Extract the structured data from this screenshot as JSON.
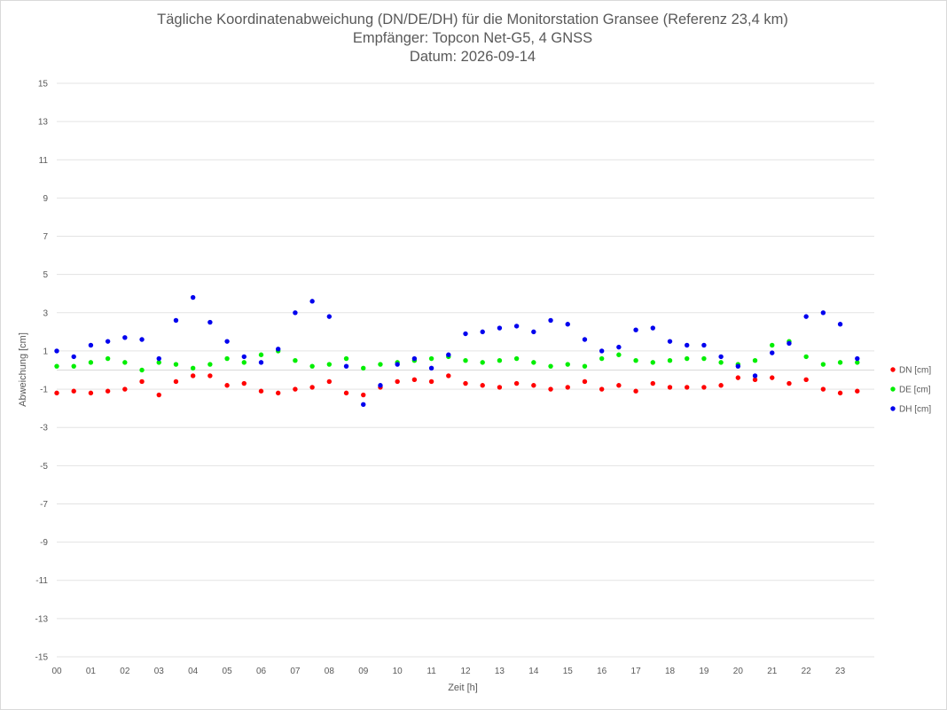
{
  "chart_data": {
    "type": "scatter",
    "title_lines": [
      "Tägliche Koordinatenabweichung (DN/DE/DH) für die Monitorstation Gransee (Referenz 23,4 km)",
      "Empfänger: Topcon Net-G5, 4 GNSS",
      "Datum: 2026-09-14"
    ],
    "xlabel": "Zeit [h]",
    "ylabel": "Abweichung [cm]",
    "xlim": [
      0,
      24
    ],
    "ylim": [
      -15,
      15
    ],
    "x_tick_labels": [
      "00",
      "01",
      "02",
      "03",
      "04",
      "05",
      "06",
      "07",
      "08",
      "09",
      "10",
      "11",
      "12",
      "13",
      "14",
      "15",
      "16",
      "17",
      "18",
      "19",
      "20",
      "21",
      "22",
      "23"
    ],
    "y_tick_labels": [
      "15",
      "13",
      "11",
      "9",
      "7",
      "5",
      "3",
      "1",
      "-1",
      "-3",
      "-5",
      "-7",
      "-9",
      "-11",
      "-13",
      "-15"
    ],
    "y_tick_values": [
      15,
      13,
      11,
      9,
      7,
      5,
      3,
      1,
      -1,
      -3,
      -5,
      -7,
      -9,
      -11,
      -13,
      -15
    ],
    "grid": "horizontal",
    "legend_position": "right",
    "series": [
      {
        "name": "DN [cm]",
        "color": "#ff0000",
        "points": [
          {
            "x": 0.0,
            "y": -1.2
          },
          {
            "x": 0.5,
            "y": -1.1
          },
          {
            "x": 1.0,
            "y": -1.2
          },
          {
            "x": 1.5,
            "y": -1.1
          },
          {
            "x": 2.0,
            "y": -1.0
          },
          {
            "x": 2.5,
            "y": -0.6
          },
          {
            "x": 3.0,
            "y": -1.3
          },
          {
            "x": 3.5,
            "y": -0.6
          },
          {
            "x": 4.0,
            "y": -0.3
          },
          {
            "x": 4.5,
            "y": -0.3
          },
          {
            "x": 5.0,
            "y": -0.8
          },
          {
            "x": 5.5,
            "y": -0.7
          },
          {
            "x": 6.0,
            "y": -1.1
          },
          {
            "x": 6.5,
            "y": -1.2
          },
          {
            "x": 7.0,
            "y": -1.0
          },
          {
            "x": 7.5,
            "y": -0.9
          },
          {
            "x": 8.0,
            "y": -0.6
          },
          {
            "x": 8.5,
            "y": -1.2
          },
          {
            "x": 9.0,
            "y": -1.3
          },
          {
            "x": 9.5,
            "y": -0.9
          },
          {
            "x": 10.0,
            "y": -0.6
          },
          {
            "x": 10.5,
            "y": -0.5
          },
          {
            "x": 11.0,
            "y": -0.6
          },
          {
            "x": 11.5,
            "y": -0.3
          },
          {
            "x": 12.0,
            "y": -0.7
          },
          {
            "x": 12.5,
            "y": -0.8
          },
          {
            "x": 13.0,
            "y": -0.9
          },
          {
            "x": 13.5,
            "y": -0.7
          },
          {
            "x": 14.0,
            "y": -0.8
          },
          {
            "x": 14.5,
            "y": -1.0
          },
          {
            "x": 15.0,
            "y": -0.9
          },
          {
            "x": 15.5,
            "y": -0.6
          },
          {
            "x": 16.0,
            "y": -1.0
          },
          {
            "x": 16.5,
            "y": -0.8
          },
          {
            "x": 17.0,
            "y": -1.1
          },
          {
            "x": 17.5,
            "y": -0.7
          },
          {
            "x": 18.0,
            "y": -0.9
          },
          {
            "x": 18.5,
            "y": -0.9
          },
          {
            "x": 19.0,
            "y": -0.9
          },
          {
            "x": 19.5,
            "y": -0.8
          },
          {
            "x": 20.0,
            "y": -0.4
          },
          {
            "x": 20.5,
            "y": -0.5
          },
          {
            "x": 21.0,
            "y": -0.4
          },
          {
            "x": 21.5,
            "y": -0.7
          },
          {
            "x": 22.0,
            "y": -0.5
          },
          {
            "x": 22.5,
            "y": -1.0
          },
          {
            "x": 23.0,
            "y": -1.2
          },
          {
            "x": 23.5,
            "y": -1.1
          }
        ]
      },
      {
        "name": "DE [cm]",
        "color": "#00ee00",
        "points": [
          {
            "x": 0.0,
            "y": 0.2
          },
          {
            "x": 0.5,
            "y": 0.2
          },
          {
            "x": 1.0,
            "y": 0.4
          },
          {
            "x": 1.5,
            "y": 0.6
          },
          {
            "x": 2.0,
            "y": 0.4
          },
          {
            "x": 2.5,
            "y": 0.0
          },
          {
            "x": 3.0,
            "y": 0.4
          },
          {
            "x": 3.5,
            "y": 0.3
          },
          {
            "x": 4.0,
            "y": 0.1
          },
          {
            "x": 4.5,
            "y": 0.3
          },
          {
            "x": 5.0,
            "y": 0.6
          },
          {
            "x": 5.5,
            "y": 0.4
          },
          {
            "x": 6.0,
            "y": 0.8
          },
          {
            "x": 6.5,
            "y": 1.0
          },
          {
            "x": 7.0,
            "y": 0.5
          },
          {
            "x": 7.5,
            "y": 0.2
          },
          {
            "x": 8.0,
            "y": 0.3
          },
          {
            "x": 8.5,
            "y": 0.6
          },
          {
            "x": 9.0,
            "y": 0.1
          },
          {
            "x": 9.5,
            "y": 0.3
          },
          {
            "x": 10.0,
            "y": 0.4
          },
          {
            "x": 10.5,
            "y": 0.5
          },
          {
            "x": 11.0,
            "y": 0.6
          },
          {
            "x": 11.5,
            "y": 0.7
          },
          {
            "x": 12.0,
            "y": 0.5
          },
          {
            "x": 12.5,
            "y": 0.4
          },
          {
            "x": 13.0,
            "y": 0.5
          },
          {
            "x": 13.5,
            "y": 0.6
          },
          {
            "x": 14.0,
            "y": 0.4
          },
          {
            "x": 14.5,
            "y": 0.2
          },
          {
            "x": 15.0,
            "y": 0.3
          },
          {
            "x": 15.5,
            "y": 0.2
          },
          {
            "x": 16.0,
            "y": 0.6
          },
          {
            "x": 16.5,
            "y": 0.8
          },
          {
            "x": 17.0,
            "y": 0.5
          },
          {
            "x": 17.5,
            "y": 0.4
          },
          {
            "x": 18.0,
            "y": 0.5
          },
          {
            "x": 18.5,
            "y": 0.6
          },
          {
            "x": 19.0,
            "y": 0.6
          },
          {
            "x": 19.5,
            "y": 0.4
          },
          {
            "x": 20.0,
            "y": 0.3
          },
          {
            "x": 20.5,
            "y": 0.5
          },
          {
            "x": 21.0,
            "y": 1.3
          },
          {
            "x": 21.5,
            "y": 1.5
          },
          {
            "x": 22.0,
            "y": 0.7
          },
          {
            "x": 22.5,
            "y": 0.3
          },
          {
            "x": 23.0,
            "y": 0.4
          },
          {
            "x": 23.5,
            "y": 0.4
          }
        ]
      },
      {
        "name": "DH [cm]",
        "color": "#0000ee",
        "points": [
          {
            "x": 0.0,
            "y": 1.0
          },
          {
            "x": 0.5,
            "y": 0.7
          },
          {
            "x": 1.0,
            "y": 1.3
          },
          {
            "x": 1.5,
            "y": 1.5
          },
          {
            "x": 2.0,
            "y": 1.7
          },
          {
            "x": 2.5,
            "y": 1.6
          },
          {
            "x": 3.0,
            "y": 0.6
          },
          {
            "x": 3.5,
            "y": 2.6
          },
          {
            "x": 4.0,
            "y": 3.8
          },
          {
            "x": 4.5,
            "y": 2.5
          },
          {
            "x": 5.0,
            "y": 1.5
          },
          {
            "x": 5.5,
            "y": 0.7
          },
          {
            "x": 6.0,
            "y": 0.4
          },
          {
            "x": 6.5,
            "y": 1.1
          },
          {
            "x": 7.0,
            "y": 3.0
          },
          {
            "x": 7.5,
            "y": 3.6
          },
          {
            "x": 8.0,
            "y": 2.8
          },
          {
            "x": 8.5,
            "y": 0.2
          },
          {
            "x": 9.0,
            "y": -1.8
          },
          {
            "x": 9.5,
            "y": -0.8
          },
          {
            "x": 10.0,
            "y": 0.3
          },
          {
            "x": 10.5,
            "y": 0.6
          },
          {
            "x": 11.0,
            "y": 0.1
          },
          {
            "x": 11.5,
            "y": 0.8
          },
          {
            "x": 12.0,
            "y": 1.9
          },
          {
            "x": 12.5,
            "y": 2.0
          },
          {
            "x": 13.0,
            "y": 2.2
          },
          {
            "x": 13.5,
            "y": 2.3
          },
          {
            "x": 14.0,
            "y": 2.0
          },
          {
            "x": 14.5,
            "y": 2.6
          },
          {
            "x": 15.0,
            "y": 2.4
          },
          {
            "x": 15.5,
            "y": 1.6
          },
          {
            "x": 16.0,
            "y": 1.0
          },
          {
            "x": 16.5,
            "y": 1.2
          },
          {
            "x": 17.0,
            "y": 2.1
          },
          {
            "x": 17.5,
            "y": 2.2
          },
          {
            "x": 18.0,
            "y": 1.5
          },
          {
            "x": 18.5,
            "y": 1.3
          },
          {
            "x": 19.0,
            "y": 1.3
          },
          {
            "x": 19.5,
            "y": 0.7
          },
          {
            "x": 20.0,
            "y": 0.2
          },
          {
            "x": 20.5,
            "y": -0.3
          },
          {
            "x": 21.0,
            "y": 0.9
          },
          {
            "x": 21.5,
            "y": 1.4
          },
          {
            "x": 22.0,
            "y": 2.8
          },
          {
            "x": 22.5,
            "y": 3.0
          },
          {
            "x": 23.0,
            "y": 2.4
          },
          {
            "x": 23.5,
            "y": 0.6
          }
        ]
      }
    ]
  }
}
